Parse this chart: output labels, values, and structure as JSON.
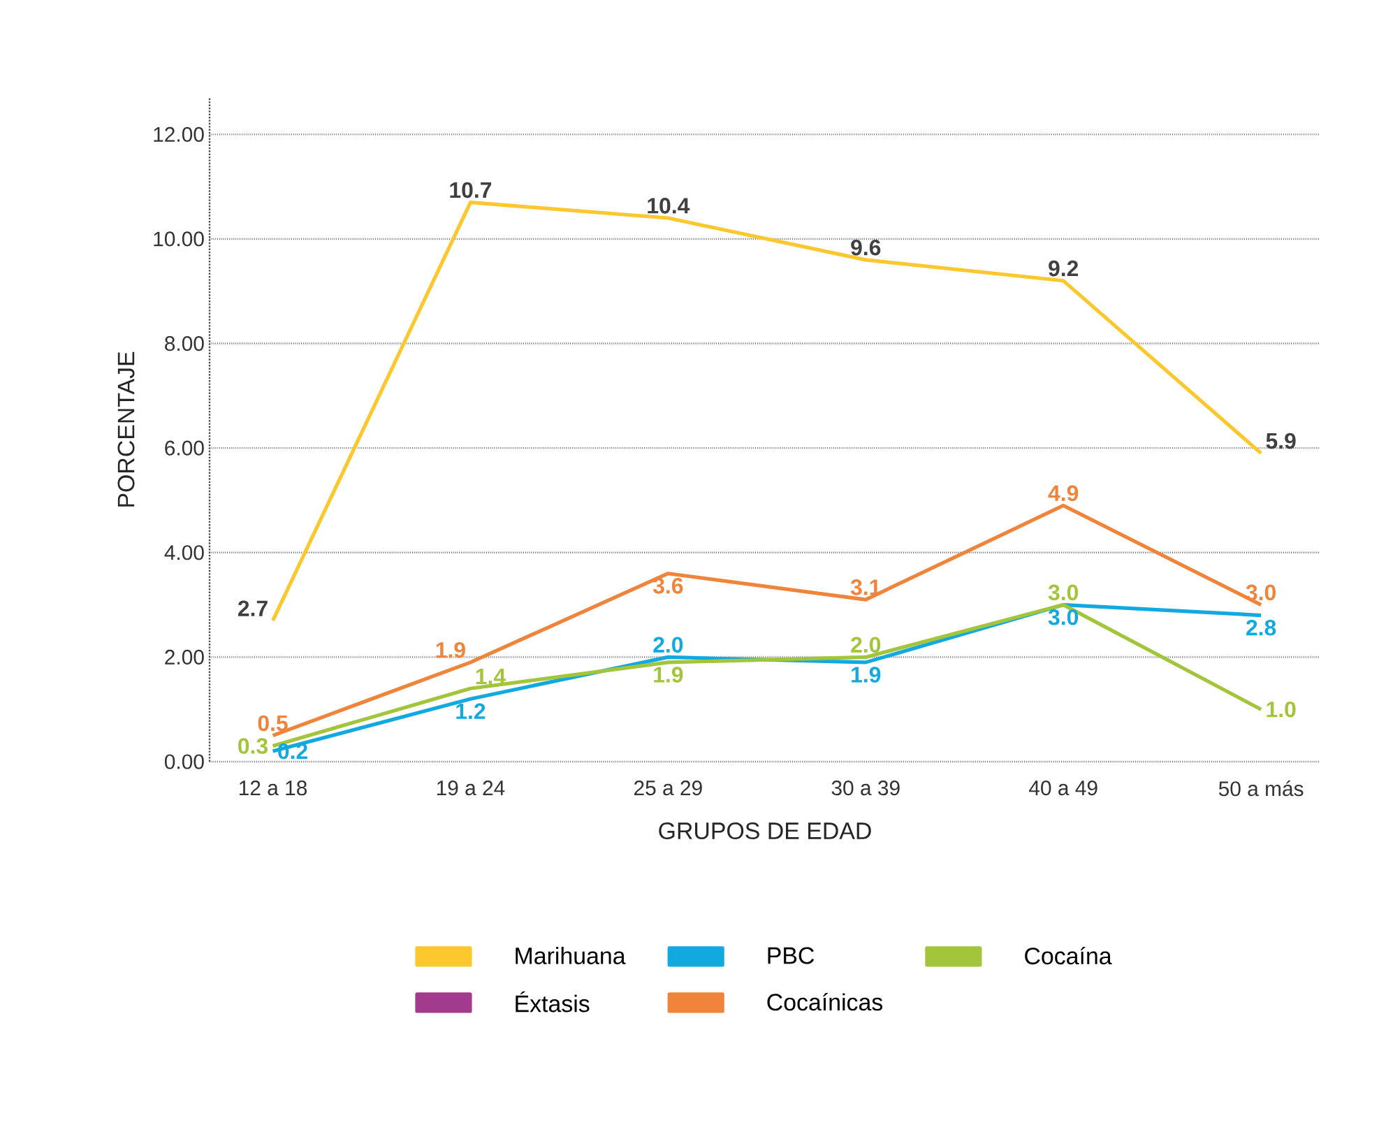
{
  "chart_data": {
    "type": "line",
    "xlabel": "GRUPOS DE EDAD",
    "ylabel": "PORCENTAJE",
    "categories": [
      "12 a 18",
      "19 a 24",
      "25 a 29",
      "30 a 39",
      "40 a 49",
      "50 a más"
    ],
    "ylim": [
      0,
      12.7
    ],
    "yticks": [
      {
        "value": 0,
        "label": "0.00"
      },
      {
        "value": 2,
        "label": "2.00"
      },
      {
        "value": 4,
        "label": "4.00"
      },
      {
        "value": 6,
        "label": "6.00"
      },
      {
        "value": 8,
        "label": "8.00"
      },
      {
        "value": 10,
        "label": "10.00"
      },
      {
        "value": 12,
        "label": "12.00"
      }
    ],
    "grid": "y",
    "legend": "bottom",
    "marker": "none",
    "line_style": "solid",
    "series": [
      {
        "name": "Marihuana",
        "color": "#fcc82e",
        "values": [
          2.7,
          10.7,
          10.4,
          9.6,
          9.2,
          5.9
        ],
        "value_labels": [
          "2.7",
          "10.7",
          "10.4",
          "9.6",
          "9.2",
          "5.9"
        ]
      },
      {
        "name": "PBC",
        "color": "#12a9e0",
        "values": [
          0.2,
          1.2,
          2.0,
          1.9,
          3.0,
          2.8
        ],
        "value_labels": [
          "0.2",
          "1.2",
          "2.0",
          "1.9",
          "3.0",
          "2.8"
        ]
      },
      {
        "name": "Cocaína",
        "color": "#a3c53b",
        "values": [
          0.3,
          1.4,
          1.9,
          2.0,
          3.0,
          1.0
        ],
        "value_labels": [
          "0.3",
          "1.4",
          "1.9",
          "2.0",
          "3.0",
          "1.0"
        ]
      },
      {
        "name": "Éxtasis",
        "color": "#a23a8e",
        "values": [
          null,
          null,
          null,
          null,
          null,
          null
        ]
      },
      {
        "name": "Cocaínicas",
        "color": "#f0843a",
        "values": [
          0.5,
          1.9,
          3.6,
          3.1,
          4.9,
          3.0
        ],
        "value_labels": [
          "0.5",
          "1.9",
          "3.6",
          "3.1",
          "4.9",
          "3.0"
        ]
      }
    ]
  }
}
